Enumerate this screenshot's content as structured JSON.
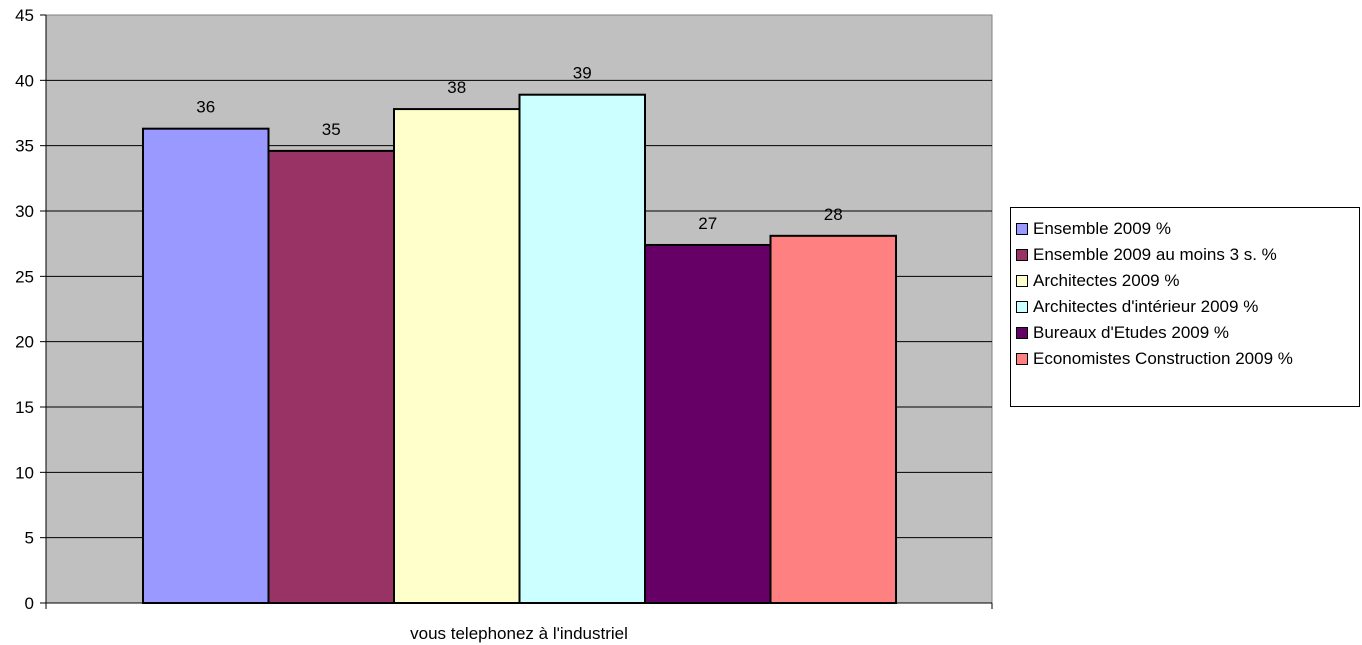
{
  "chart_data": {
    "type": "bar",
    "categories": [
      "vous telephonez à l'industriel"
    ],
    "xlabel": "",
    "ylabel": "",
    "title": "",
    "ylim": [
      0,
      45
    ],
    "yticks": [
      0,
      5,
      10,
      15,
      20,
      25,
      30,
      35,
      40,
      45
    ],
    "grid": true,
    "legend_position": "right",
    "plot_background": "#c0c0c0",
    "series": [
      {
        "name": "Ensemble 2009 %",
        "values": [
          36.3
        ],
        "label": "36",
        "color": "#9999ff"
      },
      {
        "name": "Ensemble 2009 au moins 3 s. %",
        "values": [
          34.6
        ],
        "label": "35",
        "color": "#993366"
      },
      {
        "name": "Architectes  2009 %",
        "values": [
          37.8
        ],
        "label": "38",
        "color": "#ffffcc"
      },
      {
        "name": "Architectes  d'intérieur 2009 %",
        "values": [
          38.9
        ],
        "label": "39",
        "color": "#ccffff"
      },
      {
        "name": "Bureaux d'Etudes 2009 %",
        "values": [
          27.4
        ],
        "label": "27",
        "color": "#660066"
      },
      {
        "name": "Economistes  Construction 2009 %",
        "values": [
          28.1
        ],
        "label": "28",
        "color": "#ff8080"
      }
    ]
  }
}
